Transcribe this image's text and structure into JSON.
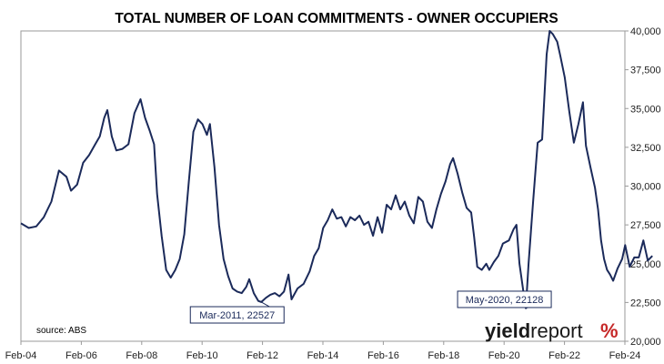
{
  "chart_data": {
    "type": "line",
    "title": "TOTAL NUMBER OF LOAN COMMITMENTS - OWNER OCCUPIERS",
    "xlabel": "",
    "ylabel": "",
    "x_tick_labels": [
      "Feb-04",
      "Feb-06",
      "Feb-08",
      "Feb-10",
      "Feb-12",
      "Feb-14",
      "Feb-16",
      "Feb-18",
      "Feb-20",
      "Feb-22",
      "Feb-24"
    ],
    "y_tick_labels": [
      "20,000",
      "22,500",
      "25,000",
      "27,500",
      "30,000",
      "32,500",
      "35,000",
      "37,500",
      "40,000"
    ],
    "ylim": [
      20000,
      40000
    ],
    "y_axis_side": "right",
    "grid": false,
    "series": [
      {
        "color": "#1b2a5a",
        "points": [
          [
            2004.04,
            27600
          ],
          [
            2004.3,
            27300
          ],
          [
            2004.55,
            27400
          ],
          [
            2004.8,
            28000
          ],
          [
            2005.05,
            29000
          ],
          [
            2005.3,
            31000
          ],
          [
            2005.55,
            30600
          ],
          [
            2005.7,
            29700
          ],
          [
            2005.9,
            30100
          ],
          [
            2006.1,
            31500
          ],
          [
            2006.3,
            32000
          ],
          [
            2006.5,
            32700
          ],
          [
            2006.65,
            33200
          ],
          [
            2006.8,
            34400
          ],
          [
            2006.9,
            34900
          ],
          [
            2007.05,
            33200
          ],
          [
            2007.2,
            32300
          ],
          [
            2007.4,
            32400
          ],
          [
            2007.6,
            32700
          ],
          [
            2007.8,
            34700
          ],
          [
            2008.0,
            35600
          ],
          [
            2008.15,
            34400
          ],
          [
            2008.3,
            33600
          ],
          [
            2008.45,
            32700
          ],
          [
            2008.55,
            29500
          ],
          [
            2008.7,
            26800
          ],
          [
            2008.85,
            24600
          ],
          [
            2009.0,
            24100
          ],
          [
            2009.15,
            24600
          ],
          [
            2009.3,
            25300
          ],
          [
            2009.45,
            26900
          ],
          [
            2009.6,
            30300
          ],
          [
            2009.75,
            33500
          ],
          [
            2009.9,
            34300
          ],
          [
            2010.05,
            34000
          ],
          [
            2010.2,
            33300
          ],
          [
            2010.3,
            34000
          ],
          [
            2010.45,
            31200
          ],
          [
            2010.6,
            27500
          ],
          [
            2010.75,
            25300
          ],
          [
            2010.9,
            24200
          ],
          [
            2011.05,
            23400
          ],
          [
            2011.2,
            23200
          ],
          [
            2011.35,
            23100
          ],
          [
            2011.5,
            23500
          ],
          [
            2011.6,
            24000
          ],
          [
            2011.75,
            23100
          ],
          [
            2011.9,
            22600
          ],
          [
            2012.0,
            22527
          ],
          [
            2012.15,
            22800
          ],
          [
            2012.3,
            23000
          ],
          [
            2012.45,
            23100
          ],
          [
            2012.6,
            22900
          ],
          [
            2012.75,
            23200
          ],
          [
            2012.9,
            24300
          ],
          [
            2013.0,
            22700
          ],
          [
            2013.2,
            23400
          ],
          [
            2013.4,
            23700
          ],
          [
            2013.6,
            24500
          ],
          [
            2013.75,
            25500
          ],
          [
            2013.9,
            26000
          ],
          [
            2014.05,
            27300
          ],
          [
            2014.2,
            27800
          ],
          [
            2014.35,
            28500
          ],
          [
            2014.5,
            27900
          ],
          [
            2014.65,
            28000
          ],
          [
            2014.8,
            27400
          ],
          [
            2014.95,
            28000
          ],
          [
            2015.1,
            27800
          ],
          [
            2015.25,
            28100
          ],
          [
            2015.4,
            27500
          ],
          [
            2015.55,
            27700
          ],
          [
            2015.7,
            26800
          ],
          [
            2015.85,
            28000
          ],
          [
            2016.0,
            27000
          ],
          [
            2016.15,
            28800
          ],
          [
            2016.3,
            28500
          ],
          [
            2016.45,
            29400
          ],
          [
            2016.6,
            28500
          ],
          [
            2016.75,
            29000
          ],
          [
            2016.9,
            28100
          ],
          [
            2017.05,
            27600
          ],
          [
            2017.2,
            29300
          ],
          [
            2017.35,
            29000
          ],
          [
            2017.5,
            27700
          ],
          [
            2017.65,
            27300
          ],
          [
            2017.8,
            28500
          ],
          [
            2017.95,
            29500
          ],
          [
            2018.1,
            30300
          ],
          [
            2018.25,
            31400
          ],
          [
            2018.35,
            31800
          ],
          [
            2018.5,
            30800
          ],
          [
            2018.65,
            29600
          ],
          [
            2018.8,
            28600
          ],
          [
            2018.95,
            28300
          ],
          [
            2019.05,
            26700
          ],
          [
            2019.15,
            24800
          ],
          [
            2019.3,
            24600
          ],
          [
            2019.45,
            25000
          ],
          [
            2019.55,
            24600
          ],
          [
            2019.7,
            25100
          ],
          [
            2019.85,
            25500
          ],
          [
            2020.0,
            26300
          ],
          [
            2020.2,
            26500
          ],
          [
            2020.35,
            27200
          ],
          [
            2020.45,
            27500
          ],
          [
            2020.55,
            25000
          ],
          [
            2020.68,
            23200
          ],
          [
            2020.76,
            22128
          ],
          [
            2020.85,
            25000
          ],
          [
            2021.0,
            29000
          ],
          [
            2021.15,
            32800
          ],
          [
            2021.3,
            33000
          ],
          [
            2021.45,
            38500
          ],
          [
            2021.55,
            40000
          ],
          [
            2021.65,
            39800
          ],
          [
            2021.8,
            39300
          ],
          [
            2021.9,
            38400
          ],
          [
            2022.05,
            37000
          ],
          [
            2022.2,
            34800
          ],
          [
            2022.35,
            32800
          ],
          [
            2022.5,
            34000
          ],
          [
            2022.65,
            35400
          ],
          [
            2022.75,
            32600
          ],
          [
            2022.9,
            31200
          ],
          [
            2023.05,
            29900
          ],
          [
            2023.15,
            28500
          ],
          [
            2023.25,
            26500
          ],
          [
            2023.35,
            25300
          ],
          [
            2023.45,
            24600
          ],
          [
            2023.55,
            24300
          ],
          [
            2023.65,
            23900
          ],
          [
            2023.8,
            24700
          ],
          [
            2023.95,
            25300
          ],
          [
            2024.05,
            26200
          ],
          [
            2024.2,
            24800
          ],
          [
            2024.35,
            25400
          ],
          [
            2024.5,
            25400
          ],
          [
            2024.65,
            26500
          ],
          [
            2024.8,
            25200
          ],
          [
            2024.95,
            25500
          ]
        ]
      }
    ],
    "annotations": [
      {
        "text": "Mar-2011, 22527",
        "x": 2012.0,
        "y": 22527,
        "box_x": 2009.65,
        "box_y": 21700
      },
      {
        "text": "May-2020, 22128",
        "x": 2020.76,
        "y": 22128,
        "box_x": 2018.5,
        "box_y": 22700
      }
    ],
    "source": "source: ABS"
  },
  "logo": {
    "part1": "yield",
    "part2": "report",
    "symbol": "%",
    "colors": [
      "#2e9e3f",
      "#c62828"
    ]
  }
}
